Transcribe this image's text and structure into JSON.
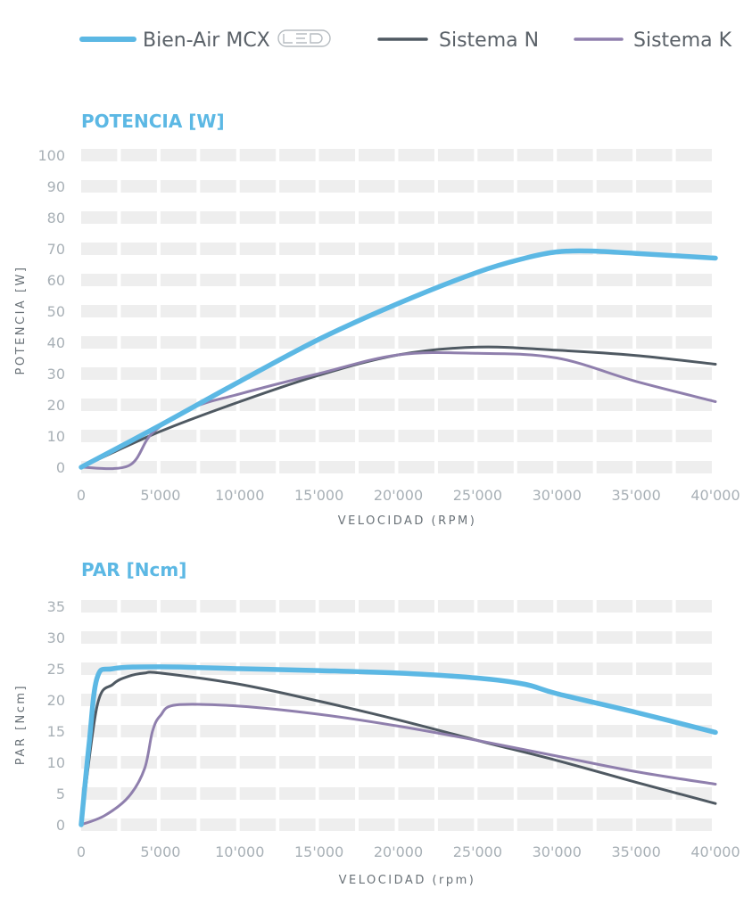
{
  "legend": {
    "items": [
      {
        "label": "Bien-Air MCX",
        "color": "#5cb8e4",
        "logo": "led-logo-icon"
      },
      {
        "label": "Sistema N",
        "color": "#4f5962"
      },
      {
        "label": "Sistema K",
        "color": "#8f7fad"
      }
    ]
  },
  "chart_data": [
    {
      "type": "line",
      "title": "POTENCIA [W]",
      "xlabel": "VELOCIDAD (RPM)",
      "ylabel": "POTENCIA [W]",
      "xlim": [
        0,
        40000
      ],
      "ylim": [
        0,
        100
      ],
      "xticks": [
        0,
        5000,
        10000,
        15000,
        20000,
        25000,
        30000,
        35000,
        40000
      ],
      "xtick_labels": [
        "0",
        "5'000",
        "10'000",
        "15'000",
        "20'000",
        "25'000",
        "30'000",
        "35'000",
        "40'000"
      ],
      "yticks": [
        0,
        10,
        20,
        30,
        40,
        50,
        60,
        70,
        80,
        90,
        100
      ],
      "ytick_labels": [
        "0",
        "10",
        "20",
        "30",
        "40",
        "50",
        "60",
        "70",
        "80",
        "90",
        "100"
      ],
      "grid": "horizontal bands",
      "series": [
        {
          "name": "Bien-Air MCX",
          "color": "#5cb8e4",
          "x": [
            0,
            5000,
            10000,
            15000,
            20000,
            25000,
            28000,
            30000,
            32000,
            35000,
            40000
          ],
          "y": [
            0,
            13.5,
            27.5,
            41,
            52.5,
            62.5,
            67,
            69,
            69.3,
            68.5,
            67
          ]
        },
        {
          "name": "Sistema N",
          "color": "#4f5962",
          "x": [
            0,
            5000,
            10000,
            15000,
            20000,
            25000,
            30000,
            35000,
            40000
          ],
          "y": [
            0,
            11.5,
            21,
            29.5,
            36,
            38.5,
            37.5,
            35.8,
            33
          ]
        },
        {
          "name": "Sistema K",
          "color": "#8f7fad",
          "x": [
            0,
            3000,
            4500,
            7000,
            10000,
            15000,
            20000,
            25000,
            30000,
            35000,
            40000
          ],
          "y": [
            0,
            0.5,
            11,
            19,
            23.5,
            30,
            36,
            36.5,
            35,
            27.5,
            21
          ]
        }
      ]
    },
    {
      "type": "line",
      "title": "PAR [Ncm]",
      "xlabel": "VELOCIDAD (rpm)",
      "ylabel": "PAR [Ncm]",
      "xlim": [
        0,
        40000
      ],
      "ylim": [
        0,
        35
      ],
      "xticks": [
        0,
        5000,
        10000,
        15000,
        20000,
        25000,
        30000,
        35000,
        40000
      ],
      "xtick_labels": [
        "0",
        "5'000",
        "10'000",
        "15'000",
        "20'000",
        "25'000",
        "30'000",
        "35'000",
        "40'000"
      ],
      "yticks": [
        0,
        5,
        10,
        15,
        20,
        25,
        30,
        35
      ],
      "ytick_labels": [
        "0",
        "5",
        "10",
        "15",
        "20",
        "25",
        "30",
        "35"
      ],
      "grid": "horizontal bands",
      "series": [
        {
          "name": "Bien-Air MCX",
          "color": "#5cb8e4",
          "x": [
            0,
            500,
            1000,
            2000,
            5000,
            10000,
            15000,
            20000,
            25000,
            28000,
            30000,
            35000,
            40000
          ],
          "y": [
            0,
            13,
            23.5,
            25,
            25.3,
            25,
            24.7,
            24.3,
            23.5,
            22.5,
            21,
            18,
            14.8
          ]
        },
        {
          "name": "Sistema N",
          "color": "#4f5962",
          "x": [
            0,
            1000,
            2000,
            3000,
            4000,
            5000,
            10000,
            15000,
            20000,
            25000,
            30000,
            35000,
            40000
          ],
          "y": [
            0,
            19,
            22.5,
            23.8,
            24.3,
            24.3,
            22.5,
            19.8,
            16.8,
            13.5,
            10.3,
            6.8,
            3.4
          ]
        },
        {
          "name": "Sistema K",
          "color": "#8f7fad",
          "x": [
            0,
            1500,
            3000,
            4000,
            4500,
            5000,
            6000,
            10000,
            15000,
            20000,
            25000,
            30000,
            35000,
            40000
          ],
          "y": [
            0,
            1.5,
            4.5,
            9,
            15,
            17.5,
            19.2,
            19,
            17.7,
            15.8,
            13.5,
            11,
            8.5,
            6.5
          ]
        }
      ]
    }
  ]
}
